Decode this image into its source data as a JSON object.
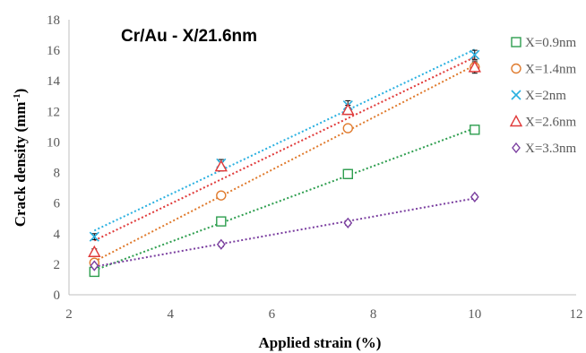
{
  "chart_data": {
    "type": "scatter",
    "title": "Cr/Au - X/21.6nm",
    "xlabel": "Applied strain (%)",
    "ylabel": "Crack density (mm⁻¹)",
    "ylabel_main": "Crack density (mm",
    "ylabel_sup": "-1",
    "ylabel_end": ")",
    "xlim": [
      2,
      12
    ],
    "ylim": [
      0,
      18
    ],
    "xticks": [
      "2",
      "4",
      "6",
      "8",
      "10",
      "12"
    ],
    "yticks": [
      "0",
      "2",
      "4",
      "6",
      "8",
      "10",
      "12",
      "14",
      "16",
      "18"
    ],
    "grid": false,
    "legend_position": "right",
    "trendlines": "linear, dotted",
    "series": [
      {
        "name": "X=0.9nm",
        "marker": "square",
        "color": "#2e9e4f",
        "x": [
          2.5,
          5,
          7.5,
          10
        ],
        "y": [
          1.5,
          4.8,
          7.9,
          10.8
        ],
        "err": [
          0.2,
          0.2,
          0.3,
          0.25
        ]
      },
      {
        "name": "X=1.4nm",
        "marker": "circle",
        "color": "#e07b2e",
        "x": [
          2.5,
          5,
          7.5,
          10
        ],
        "y": [
          2.1,
          6.5,
          10.9,
          14.9
        ],
        "err": [
          0.2,
          0.2,
          0.2,
          0.3
        ]
      },
      {
        "name": "X=2nm",
        "marker": "x",
        "color": "#2ab0e0",
        "x": [
          2.5,
          5,
          7.5,
          10
        ],
        "y": [
          3.8,
          8.6,
          12.4,
          15.7
        ],
        "err": [
          0.2,
          0.25,
          0.3,
          0.3
        ]
      },
      {
        "name": "X=2.6nm",
        "marker": "triangle",
        "color": "#e03a3a",
        "x": [
          2.5,
          5,
          7.5,
          10
        ],
        "y": [
          2.8,
          8.4,
          12.1,
          14.9
        ],
        "err": [
          0.2,
          0.3,
          0.3,
          0.4
        ]
      },
      {
        "name": "X=3.3nm",
        "marker": "diamond",
        "color": "#7b3fa0",
        "x": [
          2.5,
          5,
          7.5,
          10
        ],
        "y": [
          1.9,
          3.3,
          4.7,
          6.4
        ],
        "err": [
          0.15,
          0.15,
          0.15,
          0.15
        ]
      }
    ]
  }
}
